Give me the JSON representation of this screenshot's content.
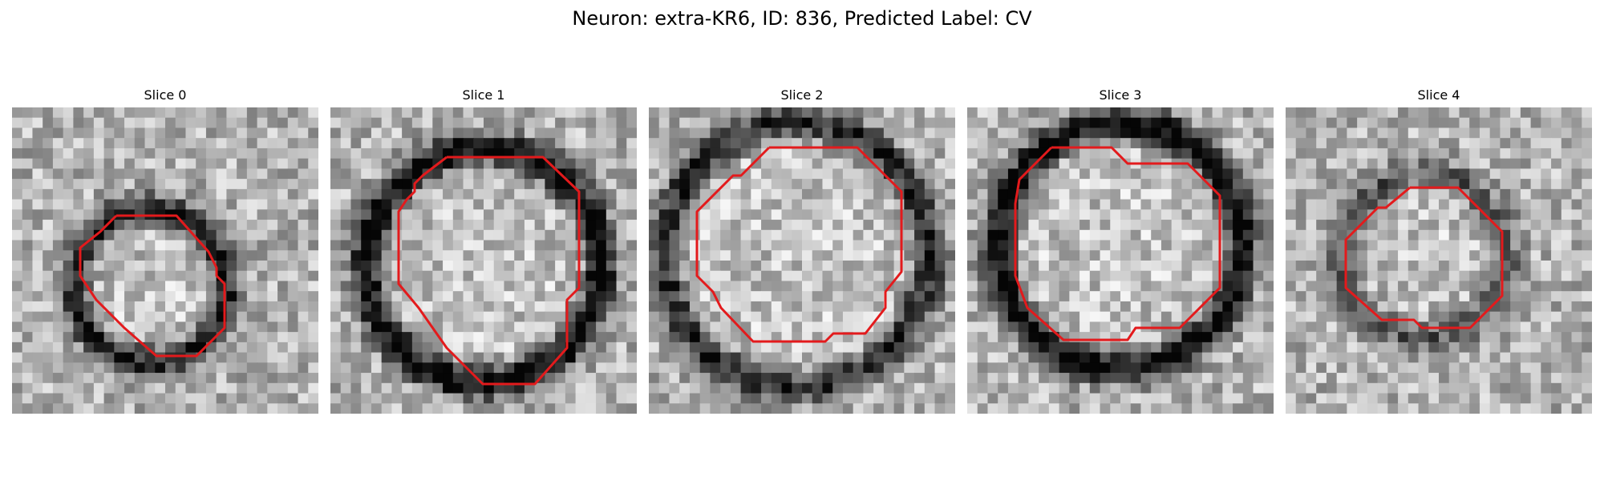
{
  "title": "Neuron: extra-KR6, ID: 836, Predicted Label: CV",
  "panels": [
    {
      "title": "Slice 0",
      "seed": 11,
      "dark_ring": 0.55,
      "contour_color": "#e31a1c"
    },
    {
      "title": "Slice 1",
      "seed": 23,
      "dark_ring": 0.7,
      "contour_color": "#e31a1c"
    },
    {
      "title": "Slice 2",
      "seed": 37,
      "dark_ring": 0.55,
      "contour_color": "#e31a1c"
    },
    {
      "title": "Slice 3",
      "seed": 41,
      "dark_ring": 0.7,
      "contour_color": "#e31a1c"
    },
    {
      "title": "Slice 4",
      "seed": 53,
      "dark_ring": 0.35,
      "contour_color": "#e31a1c"
    }
  ],
  "colors": {
    "background": "#ffffff",
    "contour": "#e31a1c"
  }
}
